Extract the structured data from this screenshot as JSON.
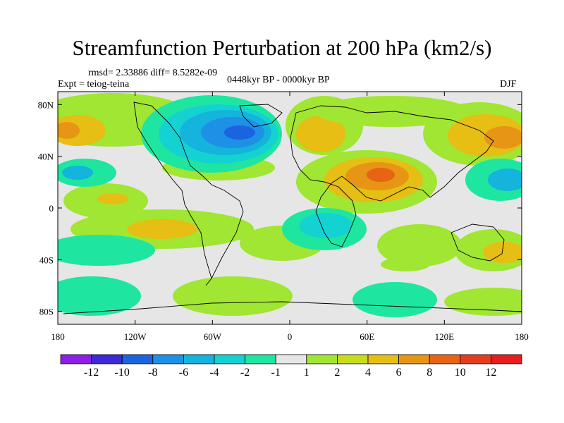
{
  "title": "Streamfunction Perturbation at 200 hPa (km2/s)",
  "stats": "rmsd= 2.33886 diff= 8.5282e-09",
  "experiment": "Expt = teiog-teina",
  "period": "0448kyr BP - 0000kyr BP",
  "season": "DJF",
  "axes": {
    "y_ticks": [
      "80N",
      "40N",
      "0",
      "40S",
      "80S"
    ],
    "x_ticks": [
      "180",
      "120W",
      "60W",
      "0",
      "60E",
      "120E",
      "180"
    ],
    "lat_values": [
      80,
      40,
      0,
      -40,
      -80
    ],
    "lon_values": [
      -180,
      -120,
      -60,
      0,
      60,
      120,
      180
    ]
  },
  "colorbar": {
    "labels": [
      "-12",
      "-10",
      "-8",
      "-6",
      "-4",
      "-2",
      "-1",
      "1",
      "2",
      "4",
      "6",
      "8",
      "10",
      "12"
    ],
    "colors": [
      "#8c1ee6",
      "#3c2ad8",
      "#1a64e0",
      "#1e90e6",
      "#14b4dc",
      "#14d2d2",
      "#1ee6a0",
      "#e6e6e6",
      "#a0e632",
      "#c8dc1e",
      "#e6be14",
      "#e69614",
      "#e66414",
      "#e63c1e",
      "#e61e1e"
    ]
  },
  "colors": {
    "background": "#e6e6e6",
    "coastline": "#000000"
  }
}
